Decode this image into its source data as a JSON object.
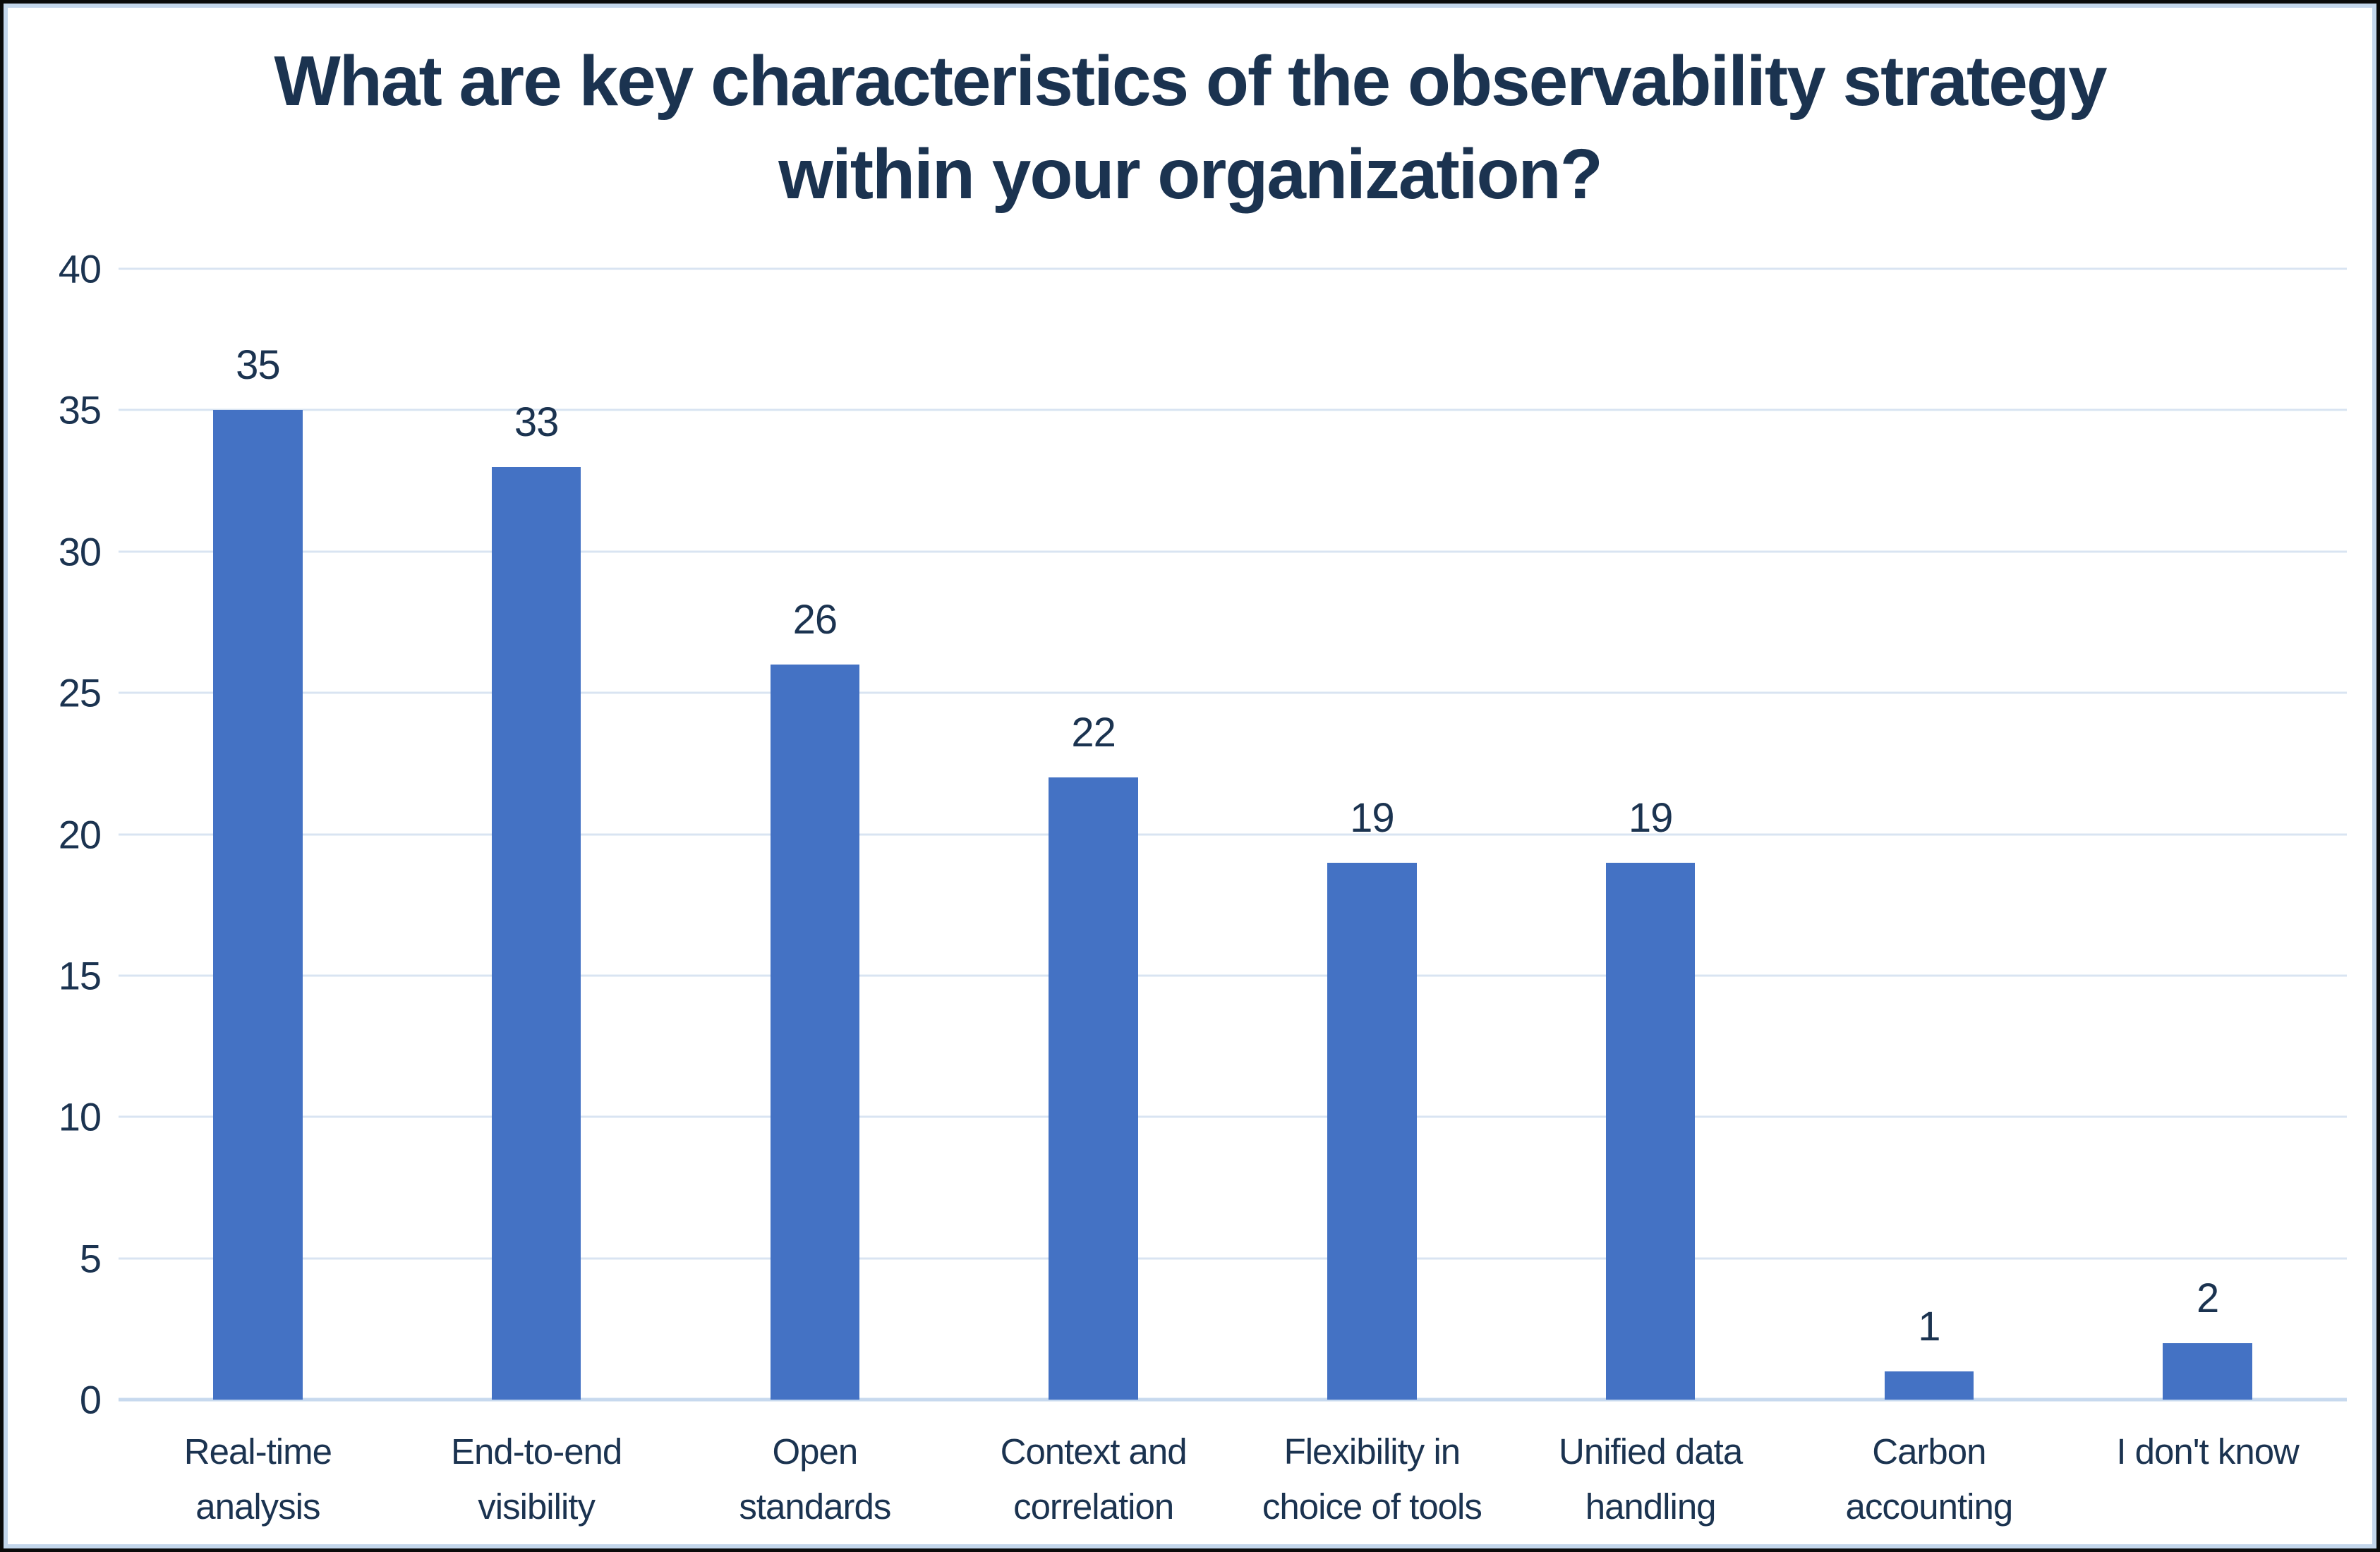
{
  "title": {
    "line1": "What are key characteristics of the observability strategy",
    "line2": "within your organization?"
  },
  "colors": {
    "bar": "#4472C4",
    "gridline": "#D9E4F2",
    "baseline": "#C7D9EE",
    "text_navy": "#1B3350",
    "frame_inner": "#C3D6EB",
    "frame_outer": "#0A0A0A"
  },
  "chart_data": {
    "type": "bar",
    "title": "What are key characteristics of the observability strategy within your organization?",
    "categories": [
      "Real-time analysis",
      "End-to-end visibility",
      "Open standards",
      "Context and correlation",
      "Flexibility in choice of tools",
      "Unified data handling",
      "Carbon accounting",
      "I don't know"
    ],
    "label_lines": [
      [
        "Real-time",
        "analysis"
      ],
      [
        "End-to-end",
        "visibility"
      ],
      [
        "Open",
        "standards"
      ],
      [
        "Context and",
        "correlation"
      ],
      [
        "Flexibility in",
        "choice of tools"
      ],
      [
        "Unified data",
        "handling"
      ],
      [
        "Carbon",
        "accounting"
      ],
      [
        "I don't know"
      ]
    ],
    "values": [
      35,
      33,
      26,
      22,
      19,
      19,
      1,
      2
    ],
    "data_labels": [
      35,
      33,
      26,
      22,
      19,
      19,
      1,
      2
    ],
    "xlabel": "",
    "ylabel": "",
    "ylim": [
      0,
      40
    ],
    "yticks": [
      0,
      5,
      10,
      15,
      20,
      25,
      30,
      35,
      40
    ],
    "grid": true,
    "legend": false
  }
}
